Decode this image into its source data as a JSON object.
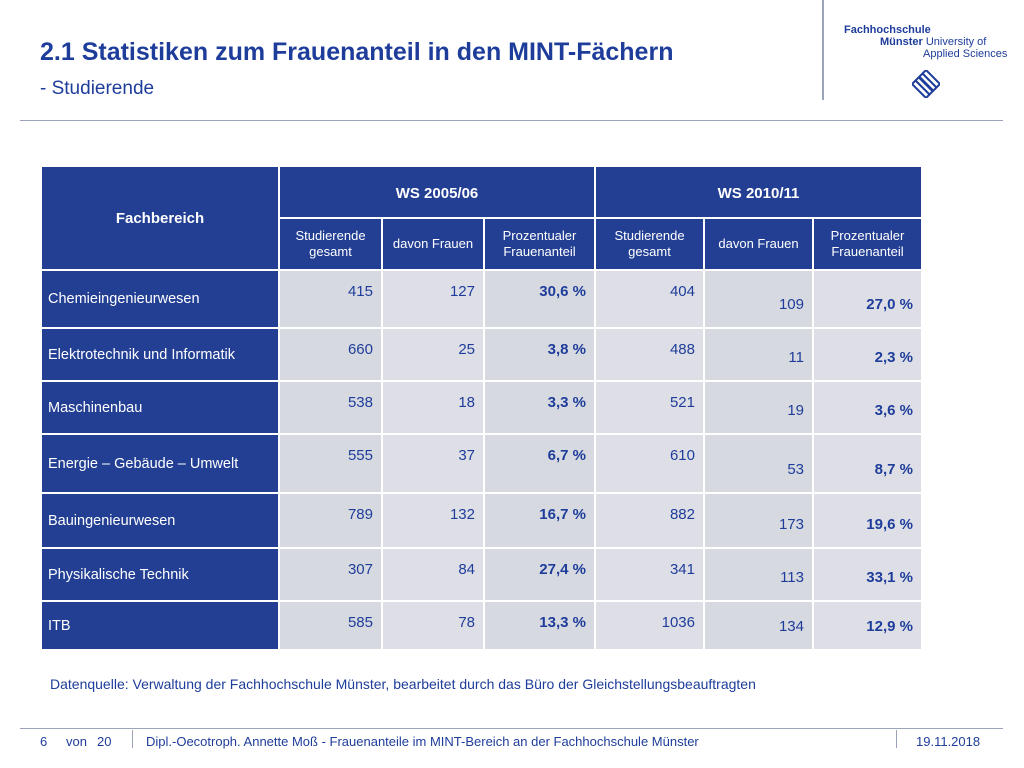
{
  "header": {
    "title": "2.1 Statistiken zum Frauenanteil in den MINT-Fächern",
    "subtitle": "- Studierende"
  },
  "logo": {
    "line1": "Fachhochschule",
    "line2a": "Münster",
    "line2b": "University of",
    "line3": "Applied Sciences"
  },
  "table": {
    "col_fachbereich": "Fachbereich",
    "group1": "WS 2005/06",
    "group2": "WS 2010/11",
    "sub": [
      "Studierende gesamt",
      "davon Frauen",
      "Prozentualer Frauenanteil",
      "Studierende gesamt",
      "davon Frauen",
      "Prozentualer Frauenanteil"
    ],
    "rows": [
      {
        "name": "Chemieingenieurwesen",
        "v": [
          "415",
          "127",
          "30,6 %",
          "404",
          "109",
          "27,0 %"
        ]
      },
      {
        "name": "Elektrotechnik und Informatik",
        "v": [
          "660",
          "25",
          "3,8 %",
          "488",
          "11",
          "2,3 %"
        ]
      },
      {
        "name": "Maschinenbau",
        "v": [
          "538",
          "18",
          "3,3 %",
          "521",
          "19",
          "3,6 %"
        ]
      },
      {
        "name": "Energie – Gebäude – Umwelt",
        "v": [
          "555",
          "37",
          "6,7 %",
          "610",
          "53",
          "8,7 %"
        ]
      },
      {
        "name": "Bauingenieurwesen",
        "v": [
          "789",
          "132",
          "16,7 %",
          "882",
          "173",
          "19,6 %"
        ]
      },
      {
        "name": "Physikalische Technik",
        "v": [
          "307",
          "84",
          "27,4 %",
          "341",
          "113",
          "33,1 %"
        ]
      },
      {
        "name": "ITB",
        "v": [
          "585",
          "78",
          "13,3 %",
          "1036",
          "134",
          "12,9 %"
        ]
      }
    ]
  },
  "source": "Datenquelle: Verwaltung der Fachhochschule Münster, bearbeitet durch das Büro der Gleichstellungsbeauftragten",
  "footer": {
    "page": "6",
    "von": "von",
    "total": "20",
    "author": "Dipl.-Oecotroph. Annette Moß - Frauenanteile im MINT-Bereich an der Fachhochschule Münster",
    "date": "19.11.2018"
  },
  "colors": {
    "accent": "#233f93",
    "cell": "#d7d9e0"
  }
}
